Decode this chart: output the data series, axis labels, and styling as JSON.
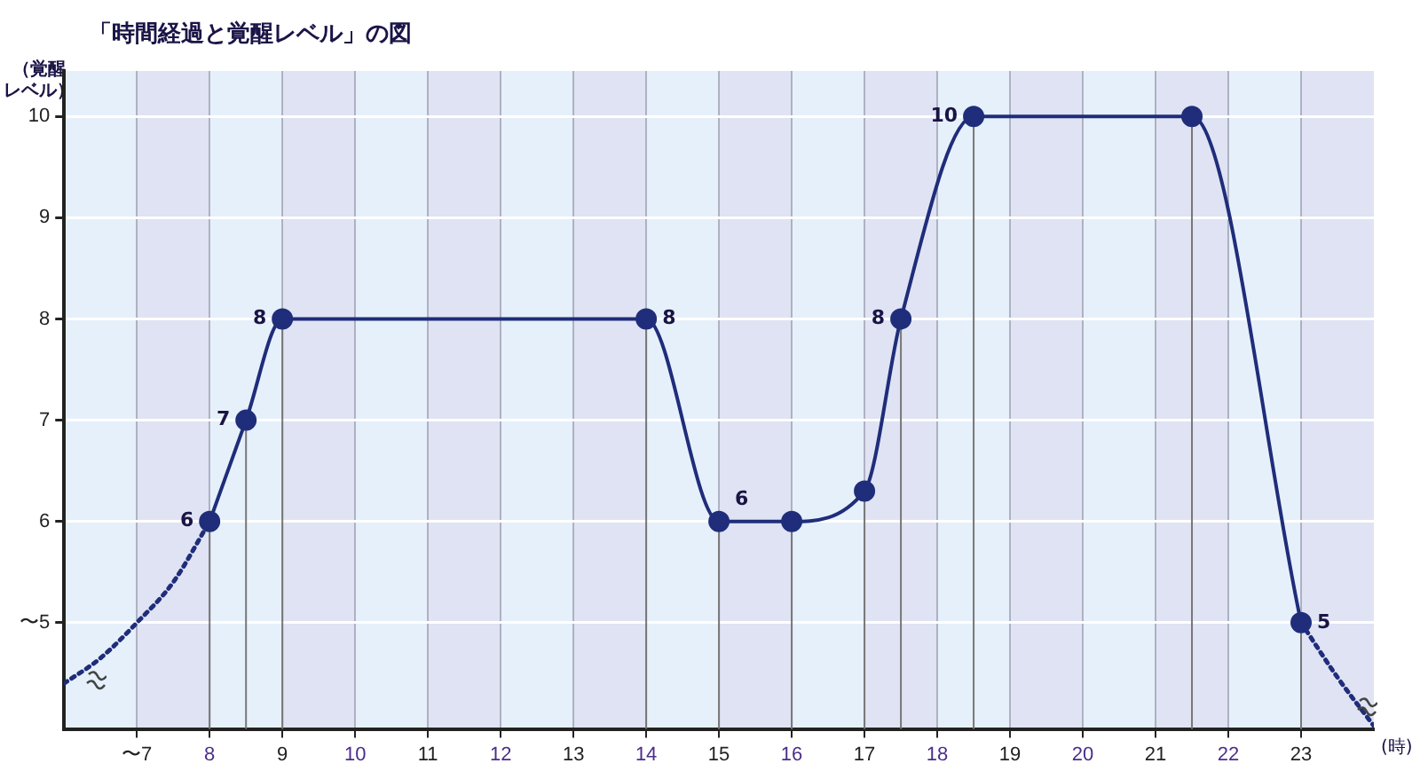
{
  "chart_data": {
    "type": "line",
    "title": "「時間経過と覚醒レベル」の図",
    "xlabel": "(時)",
    "ylabel": "（覚醒レベル）",
    "xlim": [
      6,
      24
    ],
    "ylim": [
      3.95,
      10.45
    ],
    "xticks": [
      {
        "value": 7,
        "label": "〜7"
      },
      8,
      9,
      10,
      11,
      12,
      13,
      14,
      15,
      16,
      17,
      18,
      19,
      20,
      21,
      22,
      23
    ],
    "yticks": [
      {
        "value": 5,
        "label": "〜5"
      },
      6,
      7,
      8,
      9,
      10
    ],
    "grid": true,
    "legend": false,
    "series": [
      {
        "color": "#1f2d7a",
        "marker": "circle",
        "line_style": "solid",
        "x": [
          8,
          8.5,
          9,
          14,
          15,
          16,
          17,
          17.5,
          18.5,
          21.5,
          23
        ],
        "values": [
          6,
          7,
          8,
          8,
          6,
          6,
          6.3,
          8,
          10,
          10,
          5
        ],
        "value_labels": [
          "6",
          "7",
          "8",
          "8",
          "6",
          null,
          null,
          "8",
          "10",
          null,
          "5"
        ],
        "errors": [
          [
            3.95,
            6
          ],
          [
            3.95,
            7
          ],
          [
            3.95,
            8
          ],
          [
            3.95,
            8
          ],
          [
            3.95,
            6
          ],
          [
            3.95,
            6
          ],
          [
            3.95,
            6.3
          ],
          [
            3.95,
            8
          ],
          [
            3.95,
            10
          ],
          [
            3.95,
            10
          ],
          [
            3.95,
            5
          ]
        ]
      },
      {
        "color": "#1f2d7a",
        "marker": "none",
        "line_style": "dotted",
        "x": [
          6,
          6.5,
          7,
          7.5,
          8
        ],
        "values": [
          4.4,
          4.65,
          5,
          5.4,
          6
        ]
      },
      {
        "color": "#1f2d7a",
        "marker": "none",
        "line_style": "dotted",
        "x": [
          23,
          23.5,
          24
        ],
        "values": [
          5,
          4.46,
          3.98
        ]
      }
    ]
  }
}
